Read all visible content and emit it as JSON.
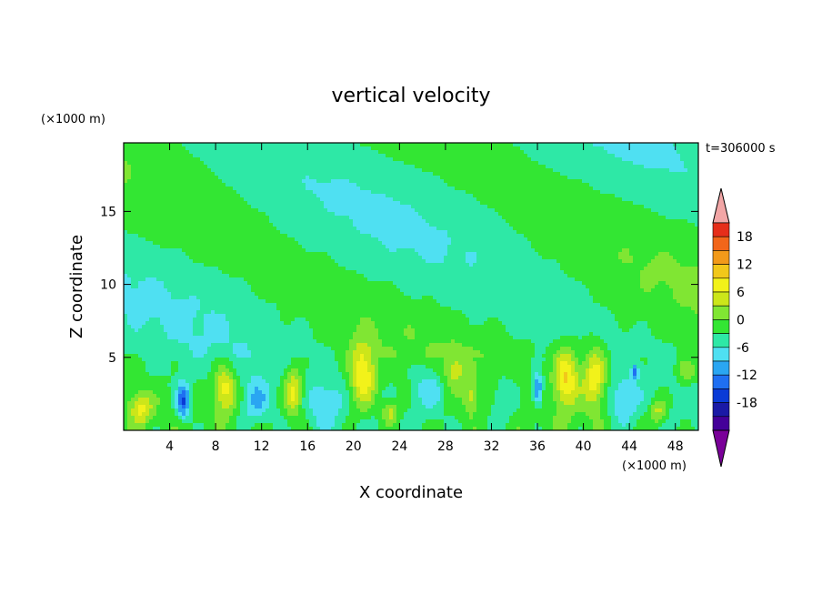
{
  "chart_data": {
    "type": "heatmap",
    "title": "vertical velocity",
    "xlabel": "X coordinate",
    "ylabel": "Z coordinate",
    "x_unit": "(×1000 m)",
    "y_unit": "(×1000 m)",
    "time_label": "t=306000 s",
    "xlim": [
      0,
      50
    ],
    "ylim": [
      0,
      19.7
    ],
    "x_ticks": [
      "4",
      "8",
      "12",
      "16",
      "20",
      "24",
      "28",
      "32",
      "36",
      "40",
      "44",
      "48"
    ],
    "y_ticks": [
      "5",
      "10",
      "15"
    ],
    "colorbar": {
      "tick_labels": [
        "18",
        "12",
        "6",
        "0",
        "-6",
        "-12",
        "-18"
      ],
      "levels": [
        -21,
        -18,
        -15,
        -12,
        -9,
        -6,
        -3,
        0,
        3,
        6,
        9,
        12,
        15,
        18,
        21
      ],
      "colors": [
        "#7a0099",
        "#440099",
        "#1a1aa6",
        "#0a3bd6",
        "#1f6ff2",
        "#2aa6f2",
        "#4fe0f2",
        "#2ee8a6",
        "#33e633",
        "#80e633",
        "#cce61a",
        "#f2f21a",
        "#f2c81a",
        "#f29a1a",
        "#f2661a",
        "#e62e1a",
        "#f2a6a6"
      ]
    },
    "grid": false,
    "features": [
      {
        "x": 1.5,
        "z": 1.5,
        "amp": 9,
        "sx": 1.0,
        "sz": 1.1
      },
      {
        "x": 5.2,
        "z": 2.0,
        "amp": -13,
        "sx": 0.55,
        "sz": 1.2
      },
      {
        "x": 8.8,
        "z": 2.8,
        "amp": 11,
        "sx": 1.0,
        "sz": 1.6
      },
      {
        "x": 11.5,
        "z": 2.0,
        "amp": -6,
        "sx": 1.2,
        "sz": 1.5
      },
      {
        "x": 14.8,
        "z": 2.6,
        "amp": 11,
        "sx": 0.8,
        "sz": 1.6
      },
      {
        "x": 17.5,
        "z": 1.8,
        "amp": -5,
        "sx": 1.4,
        "sz": 1.6
      },
      {
        "x": 20.8,
        "z": 3.8,
        "amp": 12,
        "sx": 1.1,
        "sz": 2.2
      },
      {
        "x": 23.2,
        "z": 1.2,
        "amp": 7,
        "sx": 0.7,
        "sz": 0.8
      },
      {
        "x": 26.5,
        "z": 2.8,
        "amp": -6,
        "sx": 1.5,
        "sz": 1.6
      },
      {
        "x": 28.8,
        "z": 4.2,
        "amp": 6,
        "sx": 1.0,
        "sz": 1.2
      },
      {
        "x": 30.2,
        "z": 2.3,
        "amp": 6,
        "sx": 0.6,
        "sz": 1.1
      },
      {
        "x": 33.0,
        "z": 2.0,
        "amp": -5,
        "sx": 1.2,
        "sz": 1.7
      },
      {
        "x": 36.0,
        "z": 2.8,
        "amp": -12,
        "sx": 0.45,
        "sz": 1.1
      },
      {
        "x": 38.5,
        "z": 3.6,
        "amp": 12,
        "sx": 1.0,
        "sz": 2.0
      },
      {
        "x": 41.0,
        "z": 3.6,
        "amp": 11,
        "sx": 1.0,
        "sz": 2.1
      },
      {
        "x": 43.5,
        "z": 2.0,
        "amp": -6,
        "sx": 1.3,
        "sz": 1.6
      },
      {
        "x": 44.5,
        "z": 4.0,
        "amp": -9,
        "sx": 0.3,
        "sz": 0.5
      },
      {
        "x": 46.5,
        "z": 1.3,
        "amp": 7,
        "sx": 0.7,
        "sz": 0.9
      },
      {
        "x": 49.0,
        "z": 4.0,
        "amp": 6,
        "sx": 0.8,
        "sz": 0.9
      }
    ]
  }
}
